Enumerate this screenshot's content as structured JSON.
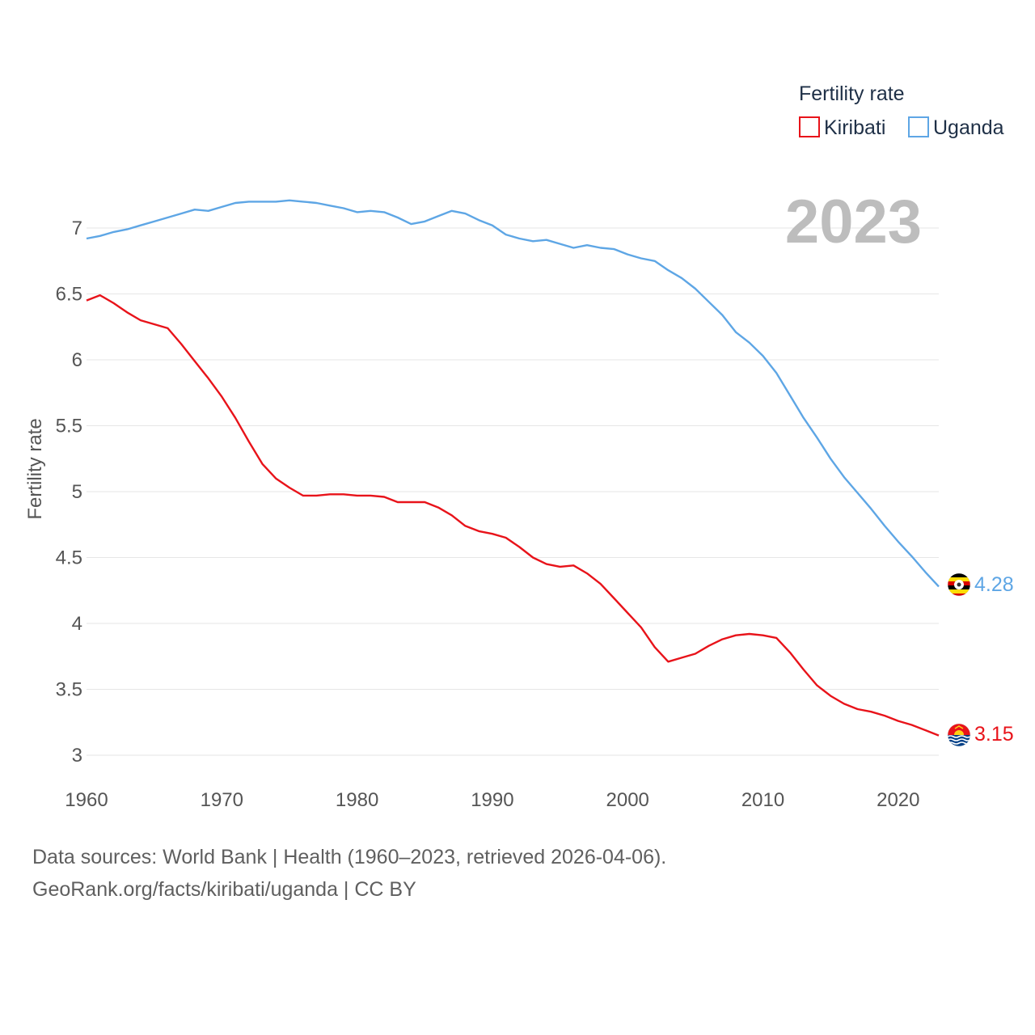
{
  "chart_data": {
    "type": "line",
    "ylabel": "Fertility rate",
    "xlabel": "",
    "xlim": [
      1960,
      2023
    ],
    "ylim": [
      3,
      7.2
    ],
    "yticks": [
      "3",
      "3.5",
      "4",
      "4.5",
      "5",
      "5.5",
      "6",
      "6.5",
      "7"
    ],
    "xticks": [
      "1960",
      "1970",
      "1980",
      "1990",
      "2000",
      "2010",
      "2020"
    ],
    "legend_title": "Fertility rate",
    "current_year": "2023",
    "series": [
      {
        "name": "Kiribati",
        "color": "#e8131a",
        "end_label": "3.15",
        "flag": "kiribati-flag",
        "x": [
          1960,
          1961,
          1962,
          1963,
          1964,
          1965,
          1966,
          1967,
          1968,
          1969,
          1970,
          1971,
          1972,
          1973,
          1974,
          1975,
          1976,
          1977,
          1978,
          1979,
          1980,
          1981,
          1982,
          1983,
          1984,
          1985,
          1986,
          1987,
          1988,
          1989,
          1990,
          1991,
          1992,
          1993,
          1994,
          1995,
          1996,
          1997,
          1998,
          1999,
          2000,
          2001,
          2002,
          2003,
          2004,
          2005,
          2006,
          2007,
          2008,
          2009,
          2010,
          2011,
          2012,
          2013,
          2014,
          2015,
          2016,
          2017,
          2018,
          2019,
          2020,
          2021,
          2022,
          2023
        ],
        "values": [
          6.45,
          6.49,
          6.43,
          6.36,
          6.3,
          6.27,
          6.24,
          6.12,
          5.99,
          5.86,
          5.72,
          5.56,
          5.38,
          5.21,
          5.1,
          5.03,
          4.97,
          4.97,
          4.98,
          4.98,
          4.97,
          4.97,
          4.96,
          4.92,
          4.92,
          4.92,
          4.88,
          4.82,
          4.74,
          4.7,
          4.68,
          4.65,
          4.58,
          4.5,
          4.45,
          4.43,
          4.44,
          4.38,
          4.3,
          4.19,
          4.08,
          3.97,
          3.82,
          3.71,
          3.74,
          3.77,
          3.83,
          3.88,
          3.91,
          3.92,
          3.91,
          3.89,
          3.78,
          3.65,
          3.53,
          3.45,
          3.39,
          3.35,
          3.33,
          3.3,
          3.26,
          3.23,
          3.19,
          3.15
        ]
      },
      {
        "name": "Uganda",
        "color": "#5ea6e5",
        "end_label": "4.28",
        "flag": "uganda-flag",
        "x": [
          1960,
          1961,
          1962,
          1963,
          1964,
          1965,
          1966,
          1967,
          1968,
          1969,
          1970,
          1971,
          1972,
          1973,
          1974,
          1975,
          1976,
          1977,
          1978,
          1979,
          1980,
          1981,
          1982,
          1983,
          1984,
          1985,
          1986,
          1987,
          1988,
          1989,
          1990,
          1991,
          1992,
          1993,
          1994,
          1995,
          1996,
          1997,
          1998,
          1999,
          2000,
          2001,
          2002,
          2003,
          2004,
          2005,
          2006,
          2007,
          2008,
          2009,
          2010,
          2011,
          2012,
          2013,
          2014,
          2015,
          2016,
          2017,
          2018,
          2019,
          2020,
          2021,
          2022,
          2023
        ],
        "values": [
          6.92,
          6.94,
          6.97,
          6.99,
          7.02,
          7.05,
          7.08,
          7.11,
          7.14,
          7.13,
          7.16,
          7.19,
          7.2,
          7.2,
          7.2,
          7.21,
          7.2,
          7.19,
          7.17,
          7.15,
          7.12,
          7.13,
          7.12,
          7.08,
          7.03,
          7.05,
          7.09,
          7.13,
          7.11,
          7.06,
          7.02,
          6.95,
          6.92,
          6.9,
          6.91,
          6.88,
          6.85,
          6.87,
          6.85,
          6.84,
          6.8,
          6.77,
          6.75,
          6.68,
          6.62,
          6.54,
          6.44,
          6.34,
          6.21,
          6.13,
          6.03,
          5.9,
          5.73,
          5.56,
          5.41,
          5.25,
          5.11,
          4.99,
          4.87,
          4.74,
          4.62,
          4.51,
          4.39,
          4.28
        ]
      }
    ]
  },
  "footer": {
    "line1": "Data sources: World Bank | Health (1960–2023, retrieved 2026-04-06).",
    "line2": "GeoRank.org/facts/kiribati/uganda | CC BY"
  }
}
